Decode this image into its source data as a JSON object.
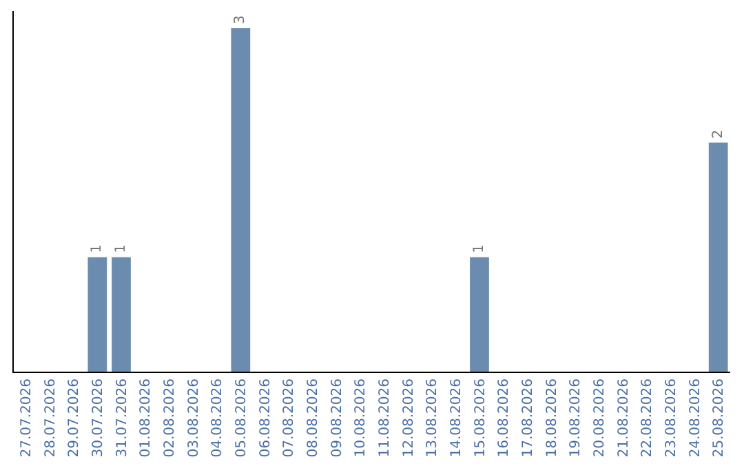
{
  "chart_data": {
    "type": "bar",
    "categories": [
      "27.07.2026",
      "28.07.2026",
      "29.07.2026",
      "30.07.2026",
      "31.07.2026",
      "01.08.2026",
      "02.08.2026",
      "03.08.2026",
      "04.08.2026",
      "05.08.2026",
      "06.08.2026",
      "07.08.2026",
      "08.08.2026",
      "09.08.2026",
      "10.08.2026",
      "11.08.2026",
      "12.08.2026",
      "13.08.2026",
      "14.08.2026",
      "15.08.2026",
      "16.08.2026",
      "17.08.2026",
      "18.08.2026",
      "19.08.2026",
      "20.08.2026",
      "21.08.2026",
      "22.08.2026",
      "23.08.2026",
      "24.08.2026",
      "25.08.2026"
    ],
    "values": [
      null,
      null,
      null,
      1,
      1,
      null,
      null,
      null,
      null,
      3,
      null,
      null,
      null,
      null,
      null,
      null,
      null,
      null,
      null,
      1,
      null,
      null,
      null,
      null,
      null,
      null,
      null,
      null,
      null,
      2
    ],
    "data_labels": true,
    "color": "#6b8caf",
    "ylim": [
      0,
      3.15
    ]
  }
}
